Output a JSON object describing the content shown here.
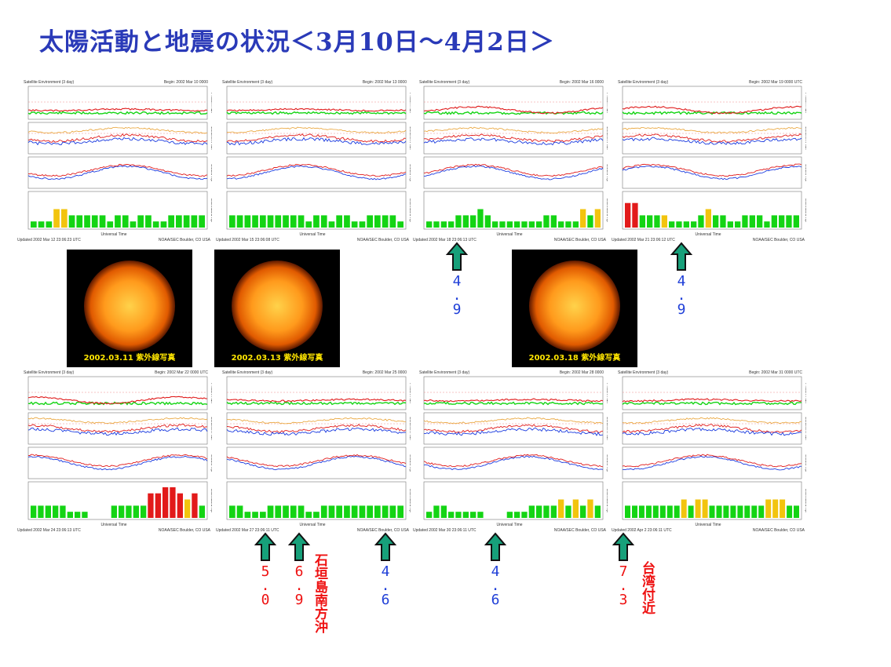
{
  "title": "太陽活動と地震の状況＜3月10日～4月2日＞",
  "colors": {
    "title": "#2a3ab8",
    "proton": "#e01b1b",
    "electron": "#1a3adf",
    "green": "#14d414",
    "yellow": "#f2c40e",
    "red": "#e21a1a",
    "arrow": "#17a07a",
    "mag_blue": "#2040d8",
    "mag_red": "#ee1111"
  },
  "panels": [
    {
      "header_left": "Satellite Environment (3 day)",
      "header_right": "Begin: 2002 Mar 10 0000",
      "footer_left": "Updated 2002 Mar 12 23:06:23 UTC",
      "footer_right": "NOAA/SEC Boulder, CO USA",
      "xlabel": "Universal Time"
    },
    {
      "header_left": "Satellite Environment (3 day)",
      "header_right": "Begin: 2002 Mar 13 0000",
      "footer_left": "Updated 2002 Mar 15 23:06:08 UTC",
      "footer_right": "NOAA/SEC Boulder, CO USA",
      "xlabel": "Universal Time"
    },
    {
      "header_left": "Satellite Environment (3 day)",
      "header_right": "Begin: 2002 Mar 16 0000",
      "footer_left": "Updated 2002 Mar 18 23:06:13 UTC",
      "footer_right": "NOAA/SEC Boulder, CO USA",
      "xlabel": "Universal Time"
    },
    {
      "header_left": "Satellite Environment (3 day)",
      "header_right": "Begin: 2002 Mar 19 0000 UTC",
      "footer_left": "Updated 2002 Mar 21 23:06:12 UTC",
      "footer_right": "NOAA/SEC Boulder, CO USA",
      "xlabel": "Universal Time"
    },
    {
      "header_left": "Satellite Environment (3 day)",
      "header_right": "Begin: 2002 Mar 22 0000 UTC",
      "footer_left": "Updated 2002 Mar 24 23:06:13 UTC",
      "footer_right": "NOAA/SEC Boulder, CO USA",
      "xlabel": "Universal Time"
    },
    {
      "header_left": "Satellite Environment (3 day)",
      "header_right": "Begin: 2002 Mar 25 0000",
      "footer_left": "Updated 2002 Mar 27 23:06:11 UTC",
      "footer_right": "NOAA/SEC Boulder, CO USA",
      "xlabel": "Universal Time"
    },
    {
      "header_left": "Satellite Environment (3 day)",
      "header_right": "Begin: 2002 Mar 28 0000",
      "footer_left": "Updated 2002 Mar 30 23:06:11 UTC",
      "footer_right": "NOAA/SEC Boulder, CO USA",
      "xlabel": "Universal Time"
    },
    {
      "header_left": "Satellite Environment (3 day)",
      "header_right": "Begin: 2002 Mar 31 0000 UTC",
      "footer_left": "Updated 2002 Apr 2 23:06:11 UTC",
      "footer_right": "NOAA/SEC Boulder, CO USA",
      "xlabel": "Universal Time"
    }
  ],
  "side_labels": [
    "Proton Flux",
    "Electron Flux",
    "GOES Hp",
    "Estimated Kp"
  ],
  "sun_captions": [
    "2002.03.11 紫外線写真",
    "2002.03.13 紫外線写真",
    "2002.03.18 紫外線写真"
  ],
  "quakes": [
    {
      "mag": "4.9",
      "color": "blue"
    },
    {
      "mag": "4.9",
      "color": "blue"
    },
    {
      "mag": "5.0",
      "color": "red"
    },
    {
      "mag": "6.9",
      "color": "red"
    },
    {
      "mag": "4.6",
      "color": "blue"
    },
    {
      "mag": "4.6",
      "color": "blue"
    },
    {
      "mag": "7.3",
      "color": "red"
    }
  ],
  "region_labels": [
    "石垣島南方沖",
    "台湾付近"
  ],
  "chart_data": [
    {
      "type": "bar",
      "panel": 1,
      "series": [
        {
          "name": "Estimated Kp",
          "values": [
            1,
            1,
            1,
            3,
            3,
            2,
            2,
            2,
            2,
            2,
            1,
            2,
            2,
            1,
            2,
            2,
            1,
            1,
            2,
            2,
            2,
            2,
            2
          ]
        }
      ],
      "bar_colors": [
        "g",
        "g",
        "g",
        "y",
        "y",
        "g",
        "g",
        "g",
        "g",
        "g",
        "g",
        "g",
        "g",
        "g",
        "g",
        "g",
        "g",
        "g",
        "g",
        "g",
        "g",
        "g",
        "g"
      ]
    },
    {
      "type": "bar",
      "panel": 2,
      "series": [
        {
          "name": "Estimated Kp",
          "values": [
            2,
            2,
            2,
            2,
            2,
            2,
            2,
            2,
            2,
            2,
            1,
            2,
            2,
            1,
            2,
            2,
            1,
            1,
            2,
            2,
            2,
            2,
            1
          ]
        }
      ],
      "bar_colors": [
        "g",
        "g",
        "g",
        "g",
        "g",
        "g",
        "g",
        "g",
        "g",
        "g",
        "g",
        "g",
        "g",
        "g",
        "g",
        "g",
        "g",
        "g",
        "g",
        "g",
        "g",
        "g",
        "g"
      ]
    },
    {
      "type": "bar",
      "panel": 3,
      "series": [
        {
          "name": "Estimated Kp",
          "values": [
            1,
            1,
            1,
            1,
            2,
            2,
            2,
            3,
            2,
            1,
            1,
            1,
            1,
            1,
            1,
            1,
            2,
            2,
            1,
            1,
            1,
            3,
            2,
            3
          ]
        }
      ],
      "bar_colors": [
        "g",
        "g",
        "g",
        "g",
        "g",
        "g",
        "g",
        "g",
        "g",
        "g",
        "g",
        "g",
        "g",
        "g",
        "g",
        "g",
        "g",
        "g",
        "g",
        "g",
        "g",
        "y",
        "g",
        "y"
      ]
    },
    {
      "type": "bar",
      "panel": 4,
      "series": [
        {
          "name": "Estimated Kp",
          "values": [
            4,
            4,
            2,
            2,
            2,
            2,
            1,
            1,
            1,
            1,
            2,
            3,
            2,
            2,
            1,
            1,
            2,
            2,
            2,
            1,
            2,
            2,
            2,
            2
          ]
        }
      ],
      "bar_colors": [
        "r",
        "r",
        "g",
        "g",
        "g",
        "y",
        "g",
        "g",
        "g",
        "g",
        "g",
        "y",
        "g",
        "g",
        "g",
        "g",
        "g",
        "g",
        "g",
        "g",
        "g",
        "g",
        "g",
        "g"
      ]
    },
    {
      "type": "bar",
      "panel": 5,
      "series": [
        {
          "name": "Estimated Kp",
          "values": [
            2,
            2,
            2,
            2,
            2,
            1,
            1,
            1,
            0,
            0,
            0,
            2,
            2,
            2,
            2,
            2,
            4,
            4,
            5,
            5,
            4,
            3,
            4,
            2
          ]
        }
      ],
      "bar_colors": [
        "g",
        "g",
        "g",
        "g",
        "g",
        "g",
        "g",
        "g",
        "g",
        "g",
        "g",
        "g",
        "g",
        "g",
        "g",
        "g",
        "r",
        "r",
        "r",
        "r",
        "r",
        "y",
        "r",
        "g"
      ]
    },
    {
      "type": "bar",
      "panel": 6,
      "series": [
        {
          "name": "Estimated Kp",
          "values": [
            2,
            2,
            1,
            1,
            1,
            2,
            2,
            2,
            2,
            2,
            1,
            1,
            2,
            2,
            2,
            2,
            2,
            2,
            2,
            2,
            2,
            2,
            2
          ]
        }
      ],
      "bar_colors": [
        "g",
        "g",
        "g",
        "g",
        "g",
        "g",
        "g",
        "g",
        "g",
        "g",
        "g",
        "g",
        "g",
        "g",
        "g",
        "g",
        "g",
        "g",
        "g",
        "g",
        "g",
        "g",
        "g"
      ]
    },
    {
      "type": "bar",
      "panel": 7,
      "series": [
        {
          "name": "Estimated Kp",
          "values": [
            1,
            2,
            2,
            1,
            1,
            1,
            1,
            1,
            0,
            0,
            0,
            1,
            1,
            1,
            2,
            2,
            2,
            2,
            3,
            2,
            3,
            2,
            3,
            2
          ]
        }
      ],
      "bar_colors": [
        "g",
        "g",
        "g",
        "g",
        "g",
        "g",
        "g",
        "g",
        "g",
        "g",
        "g",
        "g",
        "g",
        "g",
        "g",
        "g",
        "g",
        "g",
        "y",
        "g",
        "y",
        "g",
        "y",
        "g"
      ]
    },
    {
      "type": "bar",
      "panel": 8,
      "series": [
        {
          "name": "Estimated Kp",
          "values": [
            2,
            2,
            2,
            2,
            2,
            2,
            2,
            2,
            3,
            2,
            3,
            3,
            2,
            2,
            2,
            2,
            2,
            2,
            2,
            2,
            3,
            3,
            3,
            2,
            2
          ]
        }
      ],
      "bar_colors": [
        "g",
        "g",
        "g",
        "g",
        "g",
        "g",
        "g",
        "g",
        "y",
        "g",
        "y",
        "y",
        "g",
        "g",
        "g",
        "g",
        "g",
        "g",
        "g",
        "g",
        "y",
        "y",
        "y",
        "g",
        "g"
      ]
    }
  ]
}
